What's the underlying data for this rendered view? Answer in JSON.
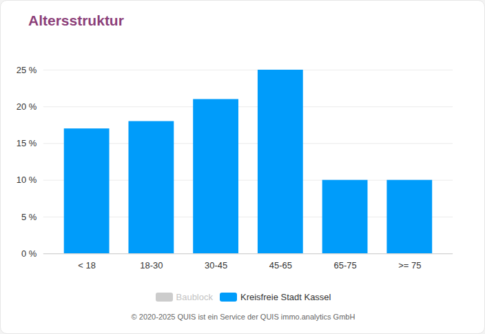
{
  "chart_data": {
    "type": "bar",
    "title": "Altersstruktur",
    "caption": "© 2020-2025 QUIS ist ein Service der QUIS immo.analytics GmbH",
    "categories": [
      "< 18",
      "18-30",
      "30-45",
      "45-65",
      "65-75",
      ">= 75"
    ],
    "series": [
      {
        "name": "Baublock",
        "color": "#cccccc",
        "values": [
          null,
          null,
          null,
          null,
          null,
          null
        ]
      },
      {
        "name": "Kreisfreie Stadt Kassel",
        "color": "#009cfa",
        "values": [
          17,
          18,
          21,
          25,
          10,
          10
        ]
      }
    ],
    "ylim": [
      0,
      25
    ],
    "yticks": [
      {
        "value": 0,
        "label": "0 %"
      },
      {
        "value": 5,
        "label": "5 %"
      },
      {
        "value": 10,
        "label": "10 %"
      },
      {
        "value": 15,
        "label": "15 %"
      },
      {
        "value": 20,
        "label": "20 %"
      },
      {
        "value": 25,
        "label": "25 %"
      }
    ],
    "grid": true
  }
}
